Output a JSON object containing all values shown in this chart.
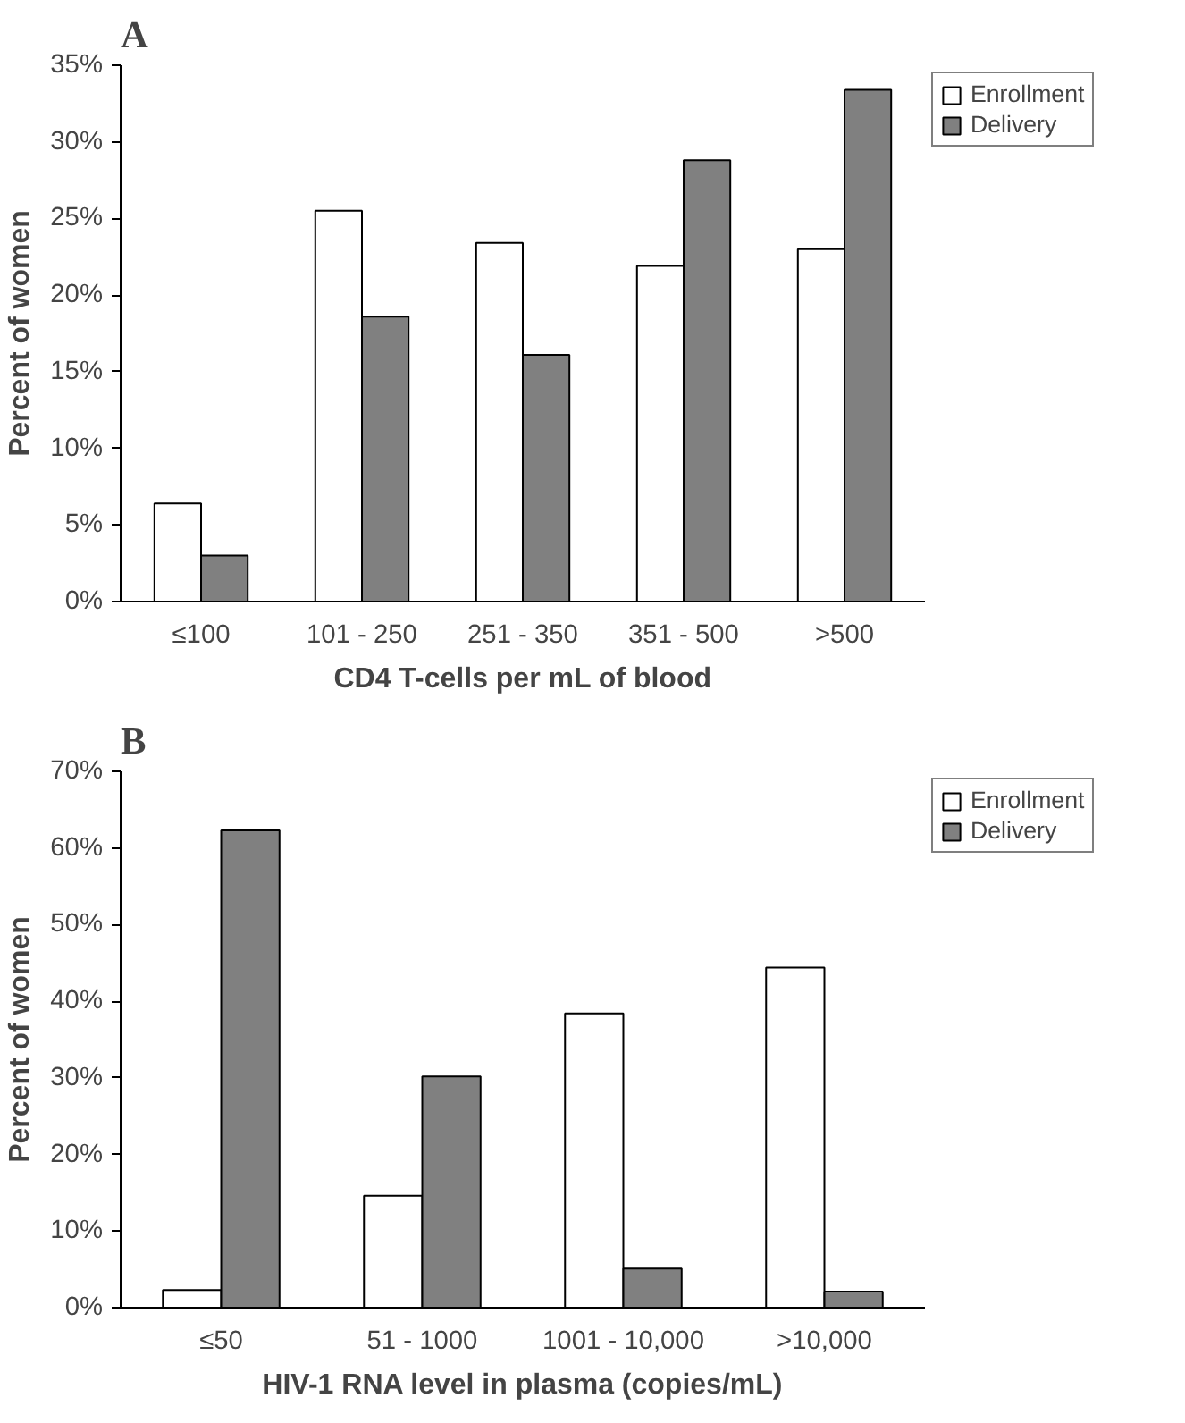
{
  "chart_data": [
    {
      "type": "bar",
      "title": "A",
      "xlabel": "CD4 T-cells per mL of blood",
      "ylabel": "Percent of women",
      "categories": [
        "≤100",
        "101 - 250",
        "251 - 350",
        "351 - 500",
        ">500"
      ],
      "series": [
        {
          "name": "Enrollment",
          "color": "#ffffff",
          "values": [
            6.4,
            25.5,
            23.4,
            21.9,
            23.0
          ]
        },
        {
          "name": "Delivery",
          "color": "#808080",
          "values": [
            3.0,
            18.6,
            16.1,
            28.8,
            33.4
          ]
        }
      ],
      "ylim": [
        0,
        35
      ],
      "yticks": [
        {
          "value": 0,
          "label": "0%"
        },
        {
          "value": 5,
          "label": "5%"
        },
        {
          "value": 10,
          "label": "10%"
        },
        {
          "value": 15,
          "label": "15%"
        },
        {
          "value": 20,
          "label": "20%"
        },
        {
          "value": 25,
          "label": "25%"
        },
        {
          "value": 30,
          "label": "30%"
        },
        {
          "value": 35,
          "label": "35%"
        }
      ],
      "legend": "right",
      "grid": false
    },
    {
      "type": "bar",
      "title": "B",
      "xlabel": "HIV-1 RNA level in plasma (copies/mL)",
      "ylabel": "Percent of women",
      "categories": [
        "≤50",
        "51 - 1000",
        "1001 - 10,000",
        ">10,000"
      ],
      "series": [
        {
          "name": "Enrollment",
          "color": "#ffffff",
          "values": [
            2.3,
            14.6,
            38.4,
            44.4
          ]
        },
        {
          "name": "Delivery",
          "color": "#808080",
          "values": [
            62.3,
            30.2,
            5.1,
            2.1
          ]
        }
      ],
      "ylim": [
        0,
        70
      ],
      "yticks": [
        {
          "value": 0,
          "label": "0%"
        },
        {
          "value": 10,
          "label": "10%"
        },
        {
          "value": 20,
          "label": "20%"
        },
        {
          "value": 30,
          "label": "30%"
        },
        {
          "value": 40,
          "label": "40%"
        },
        {
          "value": 50,
          "label": "50%"
        },
        {
          "value": 60,
          "label": "60%"
        },
        {
          "value": 70,
          "label": "70%"
        }
      ],
      "legend": "right",
      "grid": false
    }
  ]
}
